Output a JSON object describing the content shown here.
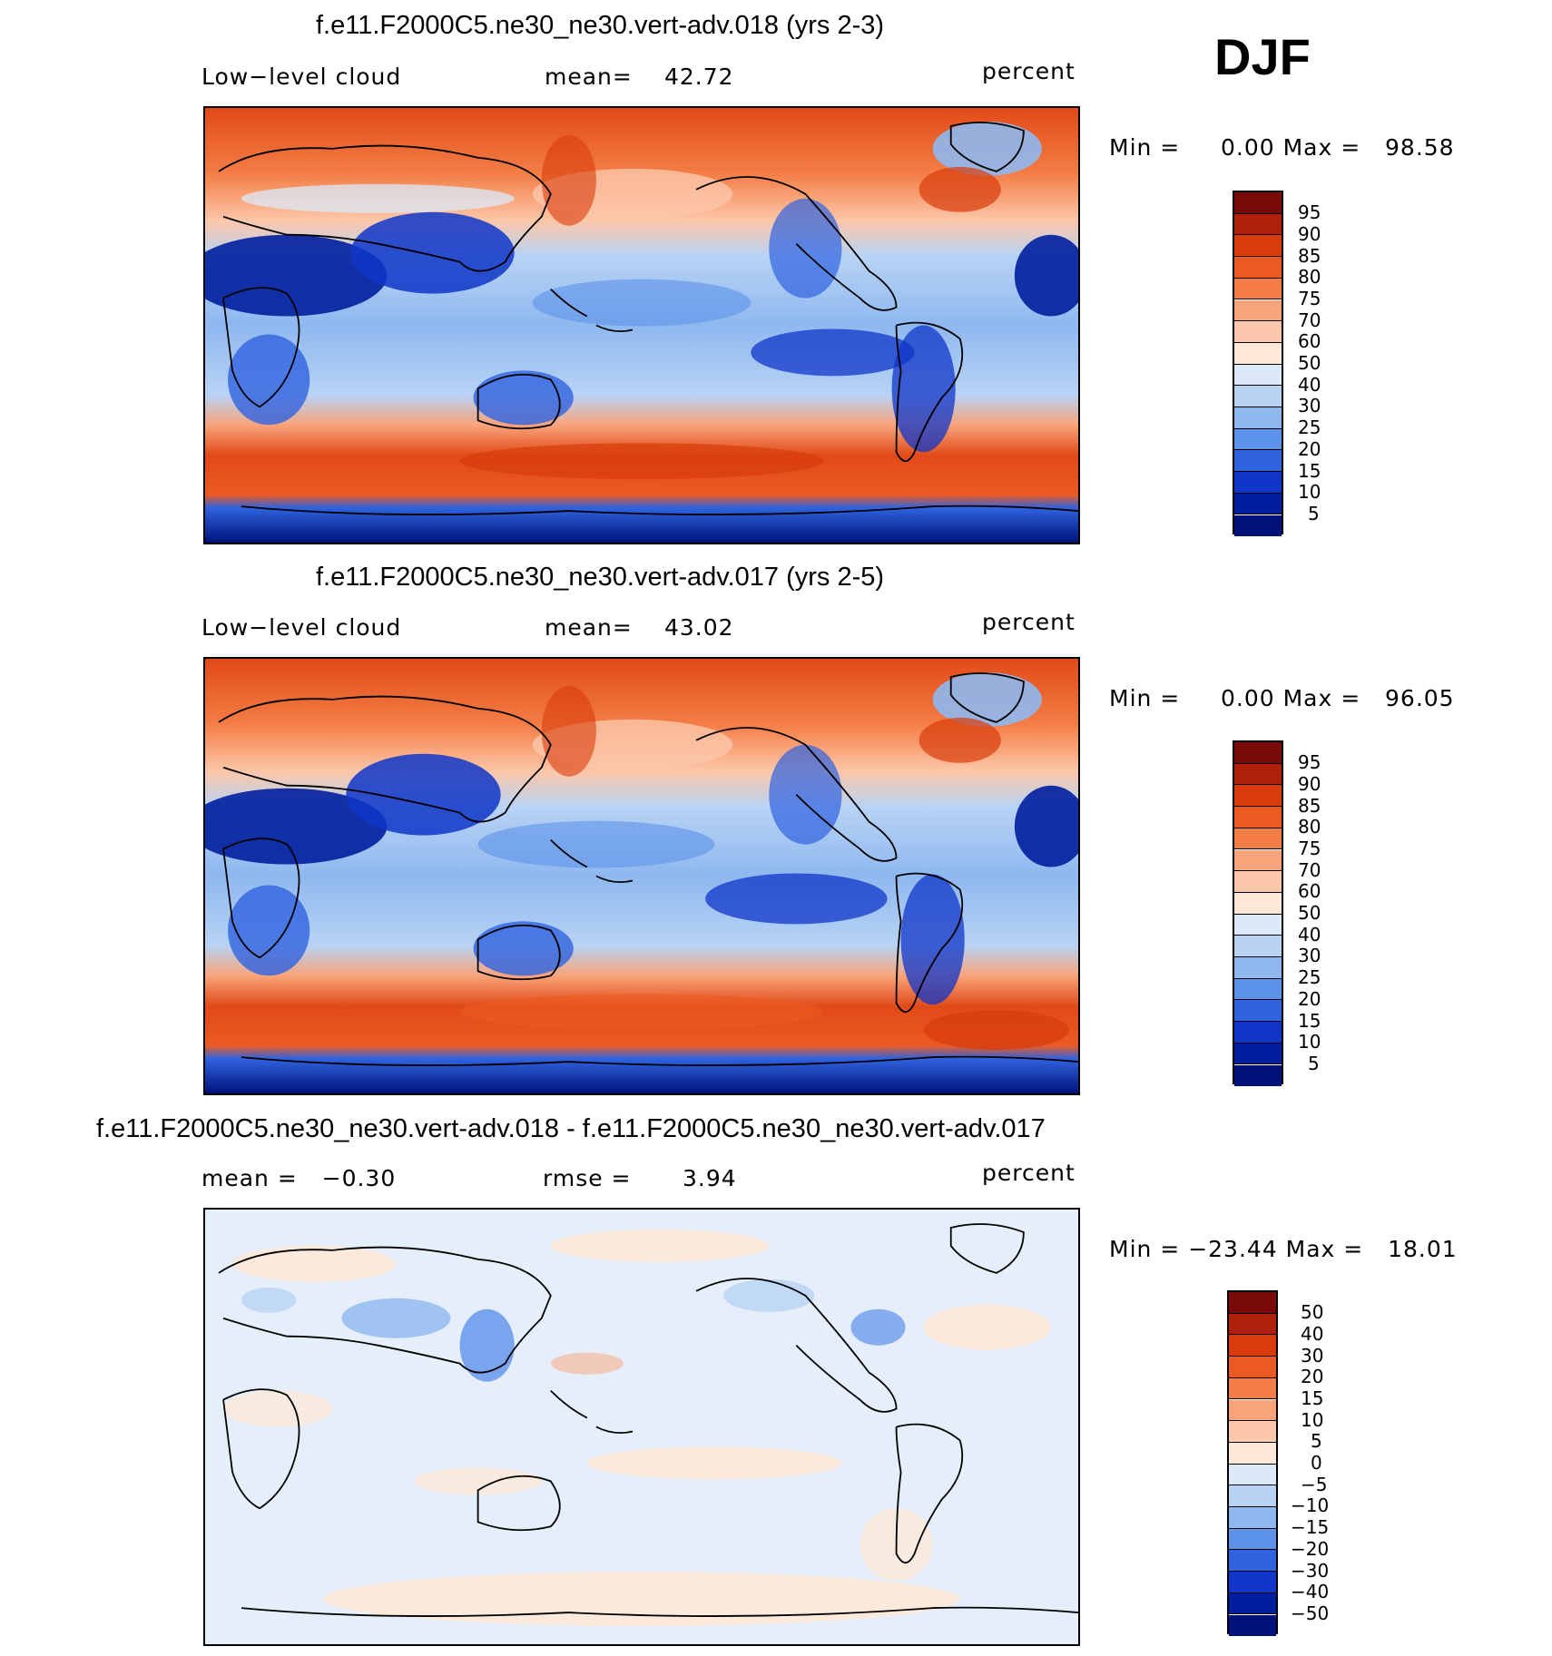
{
  "season": "DJF",
  "units": "percent",
  "panels": [
    {
      "title": "f.e11.F2000C5.ne30_ne30.vert-adv.018 (yrs 2-3)",
      "left": "Low−level cloud",
      "mid_label": "mean=",
      "mid_value": "42.72",
      "units": "percent",
      "minmax": "Min =     0.00 Max =   98.58",
      "colorbar": [
        "95",
        "90",
        "85",
        "80",
        "75",
        "70",
        "60",
        "50",
        "40",
        "30",
        "25",
        "20",
        "15",
        "10",
        "5"
      ]
    },
    {
      "title": "f.e11.F2000C5.ne30_ne30.vert-adv.017 (yrs 2-5)",
      "left": "Low−level cloud",
      "mid_label": "mean=",
      "mid_value": "43.02",
      "units": "percent",
      "minmax": "Min =     0.00 Max =   96.05",
      "colorbar": [
        "95",
        "90",
        "85",
        "80",
        "75",
        "70",
        "60",
        "50",
        "40",
        "30",
        "25",
        "20",
        "15",
        "10",
        "5"
      ]
    },
    {
      "title": "f.e11.F2000C5.ne30_ne30.vert-adv.018 - f.e11.F2000C5.ne30_ne30.vert-adv.017",
      "left": "mean =   −0.30",
      "mid_label": "rmse =",
      "mid_value": "3.94",
      "units": "percent",
      "minmax": "Min = −23.44 Max =   18.01",
      "colorbar": [
        "50",
        "40",
        "30",
        "20",
        "15",
        "10",
        "5",
        "0",
        "−5",
        "−10",
        "−15",
        "−20",
        "−30",
        "−40",
        "−50"
      ]
    }
  ],
  "colors": {
    "scale": [
      "#7a0a0a",
      "#b0210a",
      "#d83c0c",
      "#ec5a22",
      "#f47d45",
      "#f9a37a",
      "#fcc7aa",
      "#fde8d7",
      "#dbe9f9",
      "#b8d3f4",
      "#8fb8f0",
      "#5d92ea",
      "#2f63e0",
      "#0f36c8",
      "#001f9e",
      "#00127a"
    ]
  }
}
